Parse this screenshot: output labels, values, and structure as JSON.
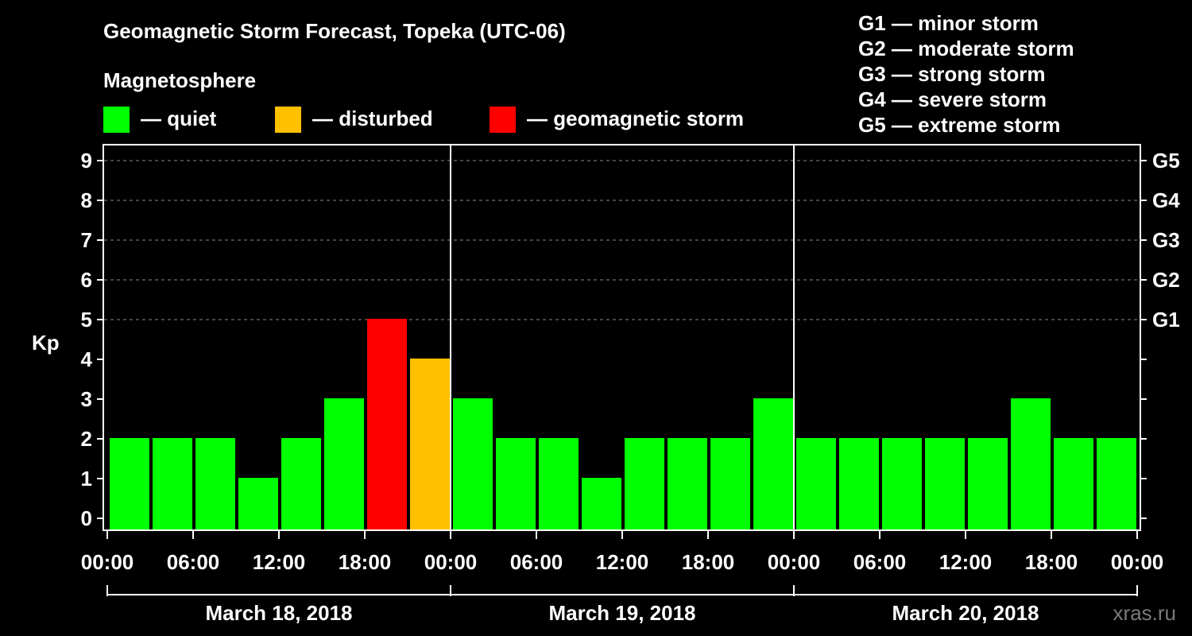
{
  "title": "Geomagnetic Storm Forecast, Topeka (UTC-06)",
  "legend": {
    "heading": "Magnetosphere",
    "items": [
      {
        "label": "— quiet",
        "color": "#00ff00"
      },
      {
        "label": "— disturbed",
        "color": "#ffc000"
      },
      {
        "label": "— geomagnetic storm",
        "color": "#ff0000"
      }
    ]
  },
  "storm_scale": [
    "G1 — minor storm",
    "G2 — moderate storm",
    "G3 — strong storm",
    "G4 — severe storm",
    "G5 — extreme storm"
  ],
  "watermark": "xras.ru",
  "chart_data": {
    "type": "bar",
    "ylabel": "Kp",
    "ylim": [
      0,
      9
    ],
    "yticks": [
      "0",
      "1",
      "2",
      "3",
      "4",
      "5",
      "6",
      "7",
      "8",
      "9"
    ],
    "right_axis": [
      {
        "kp": 5,
        "label": "G1"
      },
      {
        "kp": 6,
        "label": "G2"
      },
      {
        "kp": 7,
        "label": "G3"
      },
      {
        "kp": 8,
        "label": "G4"
      },
      {
        "kp": 9,
        "label": "G5"
      }
    ],
    "grid": "dashed horizontal at 5, 6, 7, 8, 9",
    "xticks": [
      "00:00",
      "06:00",
      "12:00",
      "18:00",
      "00:00",
      "06:00",
      "12:00",
      "18:00",
      "00:00",
      "06:00",
      "12:00",
      "18:00",
      "00:00"
    ],
    "days": [
      "March 18, 2018",
      "March 19, 2018",
      "March 20, 2018"
    ],
    "interval_hours": 3,
    "values": [
      2,
      2,
      2,
      1,
      2,
      3,
      5,
      4,
      3,
      2,
      2,
      1,
      2,
      2,
      2,
      3,
      2,
      2,
      2,
      2,
      2,
      3,
      2,
      2
    ],
    "status": [
      "quiet",
      "quiet",
      "quiet",
      "quiet",
      "quiet",
      "quiet",
      "geomagnetic storm",
      "disturbed",
      "quiet",
      "quiet",
      "quiet",
      "quiet",
      "quiet",
      "quiet",
      "quiet",
      "quiet",
      "quiet",
      "quiet",
      "quiet",
      "quiet",
      "quiet",
      "quiet",
      "quiet",
      "quiet"
    ],
    "colors": {
      "quiet": "#00ff00",
      "disturbed": "#ffc000",
      "geomagnetic storm": "#ff0000"
    }
  }
}
